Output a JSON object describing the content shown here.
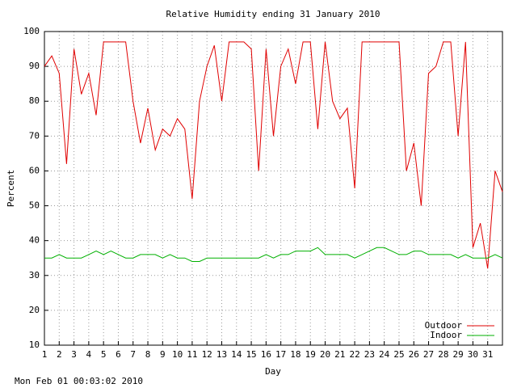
{
  "chart_data": {
    "type": "line",
    "title": "Relative Humidity ending 31 January 2010",
    "x_label": "Day",
    "y_label": "Percent",
    "footer": "Mon Feb 01 00:03:02 2010",
    "x": [
      1,
      1.5,
      2,
      2.5,
      3,
      3.5,
      4,
      4.5,
      5,
      5.5,
      6,
      6.5,
      7,
      7.5,
      8,
      8.5,
      9,
      9.5,
      10,
      10.5,
      11,
      11.5,
      12,
      12.5,
      13,
      13.5,
      14,
      14.5,
      15,
      15.5,
      16,
      16.5,
      17,
      17.5,
      18,
      18.5,
      19,
      19.5,
      20,
      20.5,
      21,
      21.5,
      22,
      22.5,
      23,
      23.5,
      24,
      24.5,
      25,
      25.5,
      26,
      26.5,
      27,
      27.5,
      28,
      28.5,
      29,
      29.5,
      30,
      30.5,
      31,
      31.5,
      32
    ],
    "series": [
      {
        "name": "Outdoor",
        "color": "#e00000",
        "values": [
          90,
          93,
          88,
          62,
          95,
          82,
          88,
          76,
          97,
          97,
          97,
          97,
          80,
          68,
          78,
          66,
          72,
          70,
          75,
          72,
          52,
          80,
          90,
          96,
          80,
          97,
          97,
          97,
          95,
          60,
          95,
          70,
          90,
          95,
          85,
          97,
          97,
          72,
          97,
          80,
          75,
          78,
          55,
          97,
          97,
          97,
          97,
          97,
          97,
          60,
          68,
          50,
          88,
          90,
          97,
          97,
          70,
          97,
          38,
          45,
          32,
          60,
          54
        ]
      },
      {
        "name": "Indoor",
        "color": "#00b000",
        "values": [
          35,
          35,
          36,
          35,
          35,
          35,
          36,
          37,
          36,
          37,
          36,
          35,
          35,
          36,
          36,
          36,
          35,
          36,
          35,
          35,
          34,
          34,
          35,
          35,
          35,
          35,
          35,
          35,
          35,
          35,
          36,
          35,
          36,
          36,
          37,
          37,
          37,
          38,
          36,
          36,
          36,
          36,
          35,
          36,
          37,
          38,
          38,
          37,
          36,
          36,
          37,
          37,
          36,
          36,
          36,
          36,
          35,
          36,
          35,
          35,
          35,
          36,
          35
        ]
      }
    ],
    "xlim": [
      1,
      32
    ],
    "xticks": [
      1,
      2,
      3,
      4,
      5,
      6,
      7,
      8,
      9,
      10,
      11,
      12,
      13,
      14,
      15,
      16,
      17,
      18,
      19,
      20,
      21,
      22,
      23,
      24,
      25,
      26,
      27,
      28,
      29,
      30,
      31
    ],
    "ylim": [
      10,
      100
    ],
    "yticks": [
      10,
      20,
      30,
      40,
      50,
      60,
      70,
      80,
      90,
      100
    ],
    "grid": true,
    "legend": "bottom-right"
  }
}
